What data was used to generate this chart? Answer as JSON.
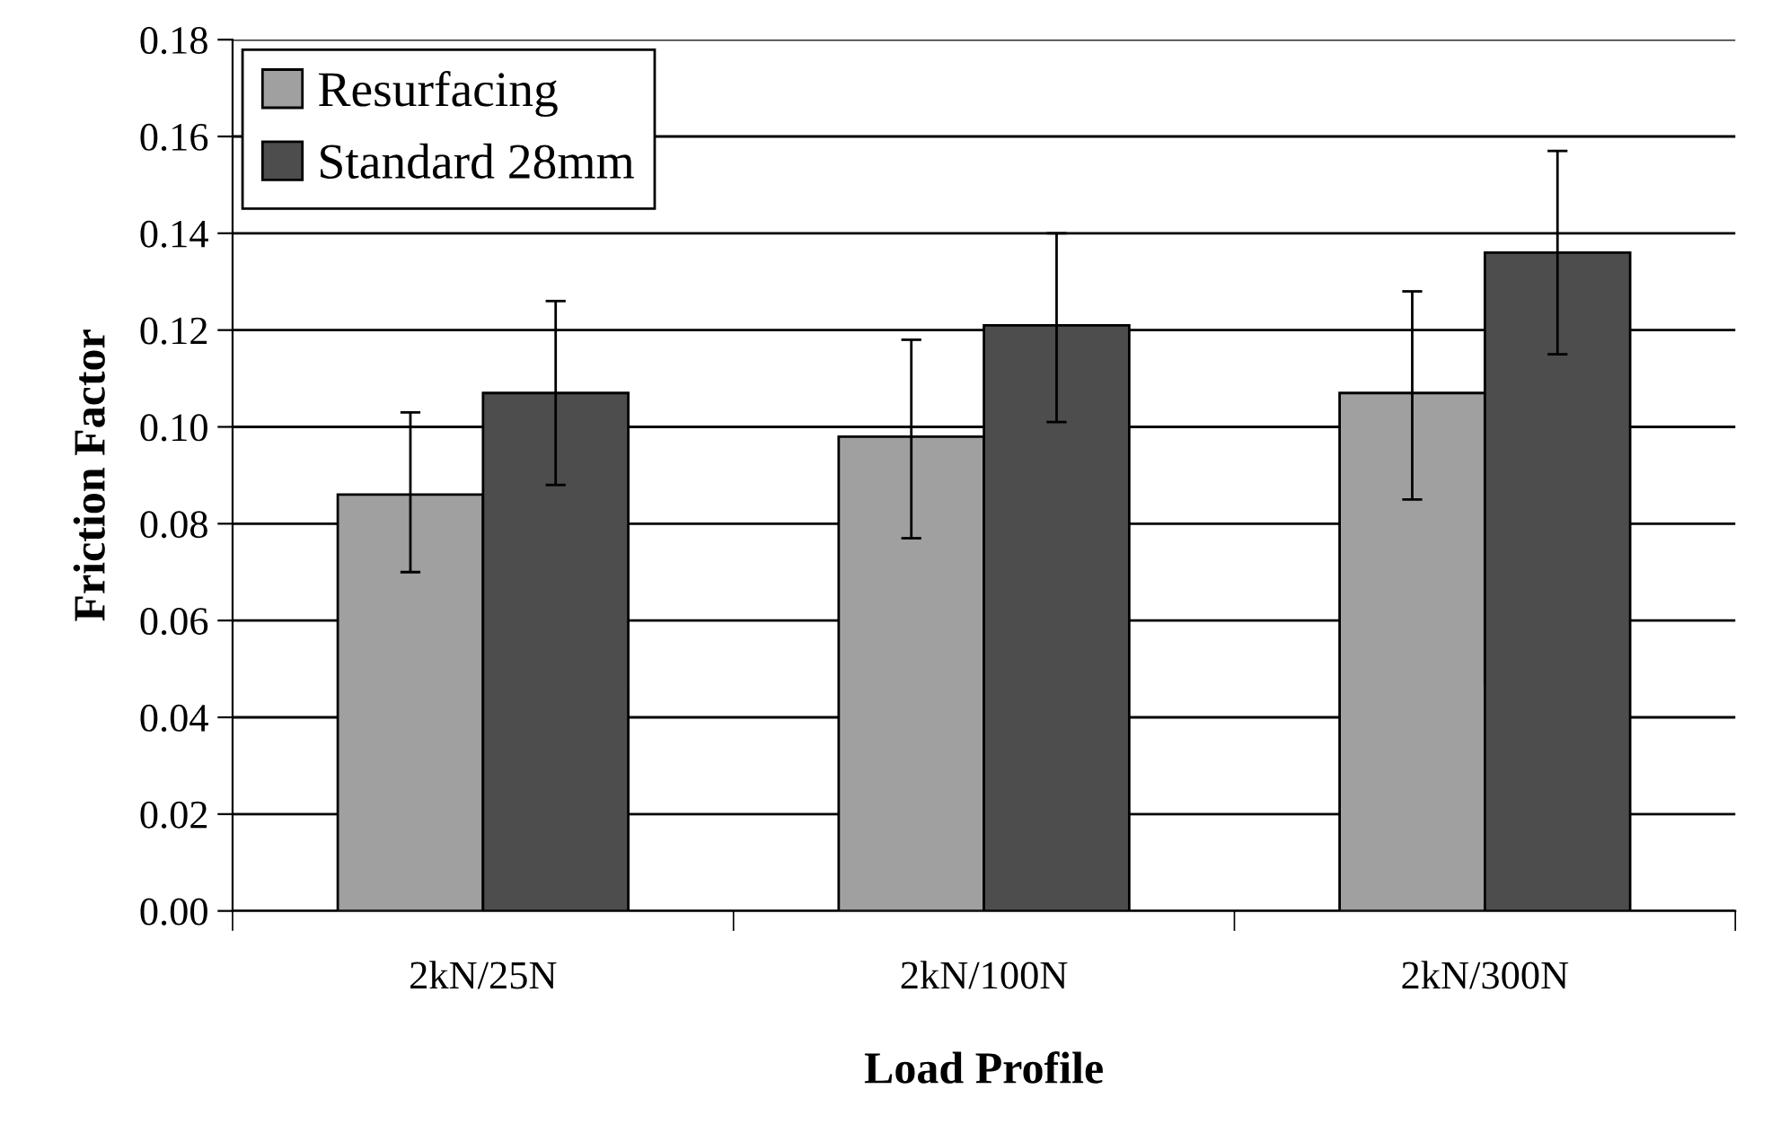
{
  "chart_data": {
    "type": "bar",
    "xlabel": "Load Profile",
    "ylabel": "Friction Factor",
    "categories": [
      "2kN/25N",
      "2kN/100N",
      "2kN/300N"
    ],
    "series": [
      {
        "name": "Resurfacing",
        "color": "#a0a0a0",
        "values": [
          0.086,
          0.098,
          0.107
        ],
        "errors": [
          [
            0.07,
            0.103
          ],
          [
            0.077,
            0.118
          ],
          [
            0.085,
            0.128
          ]
        ]
      },
      {
        "name": "Standard 28mm",
        "color": "#4d4d4d",
        "values": [
          0.107,
          0.121,
          0.136
        ],
        "errors": [
          [
            0.088,
            0.126
          ],
          [
            0.101,
            0.14
          ],
          [
            0.115,
            0.157
          ]
        ]
      }
    ],
    "ylim": [
      0,
      0.18
    ],
    "yticks": [
      {
        "value": 0,
        "label": "0.00"
      },
      {
        "value": 0.02,
        "label": "0.02"
      },
      {
        "value": 0.04,
        "label": "0.04"
      },
      {
        "value": 0.06,
        "label": "0.06"
      },
      {
        "value": 0.08,
        "label": "0.08"
      },
      {
        "value": 0.1,
        "label": "0.10"
      },
      {
        "value": 0.12,
        "label": "0.12"
      },
      {
        "value": 0.14,
        "label": "0.14"
      },
      {
        "value": 0.16,
        "label": "0.16"
      },
      {
        "value": 0.18,
        "label": "0.18"
      }
    ],
    "grid": "y",
    "legend": "top left"
  }
}
